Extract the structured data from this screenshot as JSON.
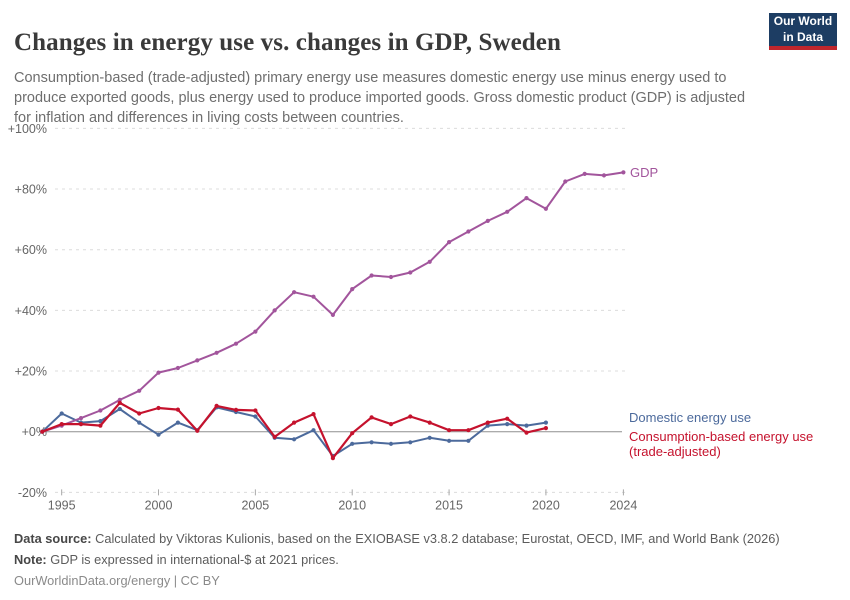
{
  "header": {
    "title": "Changes in energy use vs. changes in GDP, Sweden",
    "subtitle": "Consumption-based (trade-adjusted) primary energy use measures domestic energy use minus energy used to produce exported goods, plus energy used to produce imported goods. Gross domestic product (GDP) is adjusted for inflation and differences in living costs between countries.",
    "logo": {
      "line1": "Our World",
      "line2": "in Data",
      "bg_color": "#1D3D63",
      "accent_color": "#C0262C"
    }
  },
  "chart_data": {
    "type": "line",
    "title": "Changes in energy use vs. changes in GDP, Sweden",
    "unit": "%",
    "grid": true,
    "legend_position": "right-end-labels",
    "xlim": [
      1994,
      2024
    ],
    "ylim": [
      -20,
      100
    ],
    "x": [
      1994,
      1995,
      1996,
      1997,
      1998,
      1999,
      2000,
      2001,
      2002,
      2003,
      2004,
      2005,
      2006,
      2007,
      2008,
      2009,
      2010,
      2011,
      2012,
      2013,
      2014,
      2015,
      2016,
      2017,
      2018,
      2019,
      2020,
      2021,
      2022,
      2023,
      2024
    ],
    "y_ticks": [
      {
        "value": -20,
        "label": "-20%"
      },
      {
        "value": 0,
        "label": "+0%"
      },
      {
        "value": 20,
        "label": "+20%"
      },
      {
        "value": 40,
        "label": "+40%"
      },
      {
        "value": 60,
        "label": "+60%"
      },
      {
        "value": 80,
        "label": "+80%"
      },
      {
        "value": 100,
        "label": "+100%"
      }
    ],
    "x_ticks": [
      {
        "value": 1995,
        "label": "1995"
      },
      {
        "value": 2000,
        "label": "2000"
      },
      {
        "value": 2005,
        "label": "2005"
      },
      {
        "value": 2010,
        "label": "2010"
      },
      {
        "value": 2015,
        "label": "2015"
      },
      {
        "value": 2020,
        "label": "2020"
      },
      {
        "value": 2024,
        "label": "2024"
      }
    ],
    "series": [
      {
        "name": "Domestic energy use",
        "color": "#4C6A9C",
        "end_label_lines": [
          "Domestic energy use"
        ],
        "values": [
          0,
          6,
          3,
          3.5,
          7.5,
          3,
          -1,
          3,
          0.5,
          8,
          6.5,
          5,
          -2,
          -2.5,
          0.5,
          -8,
          -4,
          -3.5,
          -4,
          -3.5,
          -2,
          -3,
          -3,
          2,
          2.5,
          2,
          3
        ]
      },
      {
        "name": "GDP",
        "color": "#A2559C",
        "end_label_lines": [
          "GDP"
        ],
        "values": [
          0,
          2,
          4.5,
          7,
          10.5,
          13.5,
          19.5,
          21,
          23.5,
          26,
          29,
          33,
          40,
          46,
          44.5,
          38.5,
          47,
          51.5,
          51,
          52.5,
          56,
          62.5,
          66,
          69.5,
          72.5,
          77,
          73.5,
          82.5,
          85,
          84.5,
          85.5
        ]
      },
      {
        "name": "Consumption-based energy use (trade-adjusted)",
        "color": "#C5122D",
        "end_label_lines": [
          "Consumption-based energy use",
          "(trade-adjusted)"
        ],
        "values": [
          0,
          2.5,
          2.5,
          2,
          9.5,
          6,
          7.8,
          7.3,
          0.3,
          8.5,
          7.2,
          7,
          -1.7,
          3,
          5.8,
          -8.7,
          -0.5,
          4.7,
          2.5,
          5,
          3,
          0.5,
          0.5,
          3,
          4.3,
          -0.3,
          1.2
        ]
      }
    ]
  },
  "footer": {
    "data_source_label": "Data source:",
    "data_source_text": " Calculated by Viktoras Kulionis, based on the EXIOBASE v3.8.2 database; Eurostat, OECD, IMF, and World Bank (2026)",
    "note_label": "Note:",
    "note_text": " GDP is expressed in international-$ at 2021 prices.",
    "permalink": "OurWorldinData.org/energy | CC BY"
  }
}
